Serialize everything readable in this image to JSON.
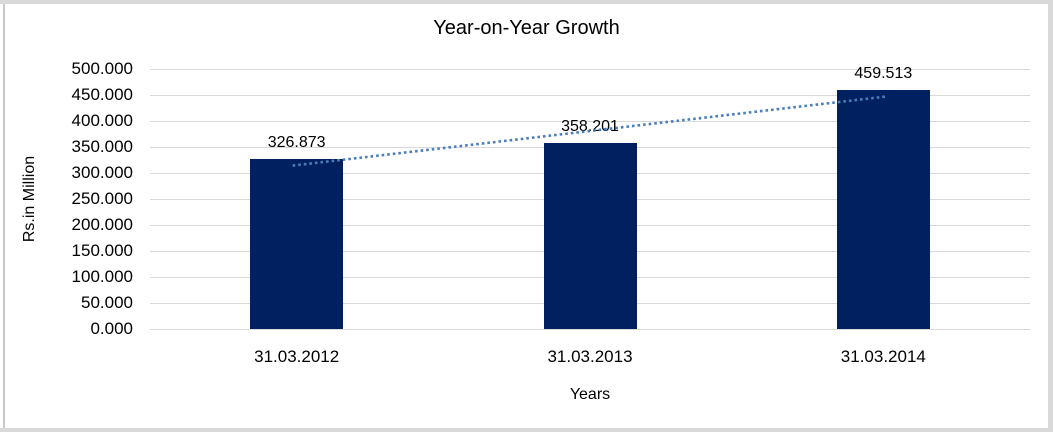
{
  "chart_data": {
    "type": "bar",
    "title": "Year-on-Year Growth",
    "categories": [
      "31.03.2012",
      "31.03.2013",
      "31.03.2014"
    ],
    "values": [
      326.873,
      358.201,
      459.513
    ],
    "data_labels": [
      "326.873",
      "358.201",
      "459.513"
    ],
    "xlabel": "Years",
    "ylabel": "Rs.in Million",
    "ylim": [
      0,
      500
    ],
    "ytick_step": 50,
    "ytick_labels": [
      "0.000",
      "50.000",
      "100.000",
      "150.000",
      "200.000",
      "250.000",
      "300.000",
      "350.000",
      "400.000",
      "450.000",
      "500.000"
    ],
    "grid": true,
    "legend": "none",
    "trendline": {
      "type": "linear",
      "style": "dotted",
      "span": "first to last category center"
    },
    "colors": {
      "bar": "#002060",
      "trendline": "#4A7EBB",
      "gridline": "#D9D9D9",
      "frame": "#D9D9D9",
      "frame_left_line": "#C9C9C9",
      "text": "#000000",
      "background": "#FFFFFF"
    }
  }
}
